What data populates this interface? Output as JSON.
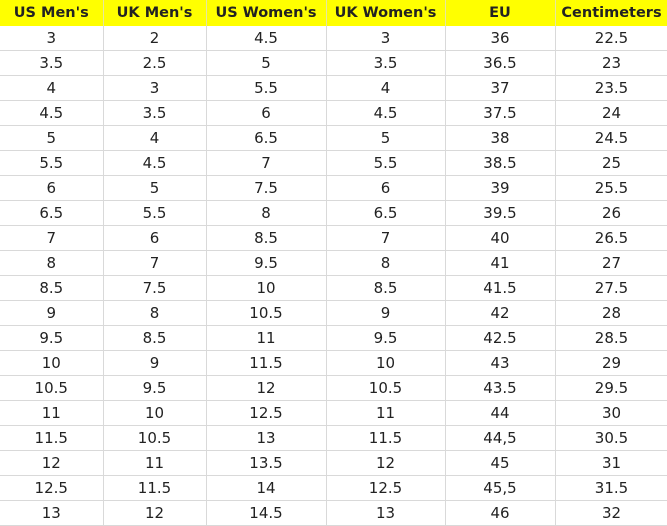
{
  "headers": [
    "US Men's",
    "UK Men's",
    "US Women's",
    "UK Women's",
    "EU",
    "Centimeters"
  ],
  "header_color": "#ffff00",
  "rows": [
    [
      "3",
      "2",
      "4.5",
      "3",
      "36",
      "22.5"
    ],
    [
      "3.5",
      "2.5",
      "5",
      "3.5",
      "36.5",
      "23"
    ],
    [
      "4",
      "3",
      "5.5",
      "4",
      "37",
      "23.5"
    ],
    [
      "4.5",
      "3.5",
      "6",
      "4.5",
      "37.5",
      "24"
    ],
    [
      "5",
      "4",
      "6.5",
      "5",
      "38",
      "24.5"
    ],
    [
      "5.5",
      "4.5",
      "7",
      "5.5",
      "38.5",
      "25"
    ],
    [
      "6",
      "5",
      "7.5",
      "6",
      "39",
      "25.5"
    ],
    [
      "6.5",
      "5.5",
      "8",
      "6.5",
      "39.5",
      "26"
    ],
    [
      "7",
      "6",
      "8.5",
      "7",
      "40",
      "26.5"
    ],
    [
      "8",
      "7",
      "9.5",
      "8",
      "41",
      "27"
    ],
    [
      "8.5",
      "7.5",
      "10",
      "8.5",
      "41.5",
      "27.5"
    ],
    [
      "9",
      "8",
      "10.5",
      "9",
      "42",
      "28"
    ],
    [
      "9.5",
      "8.5",
      "11",
      "9.5",
      "42.5",
      "28.5"
    ],
    [
      "10",
      "9",
      "11.5",
      "10",
      "43",
      "29"
    ],
    [
      "10.5",
      "9.5",
      "12",
      "10.5",
      "43.5",
      "29.5"
    ],
    [
      "11",
      "10",
      "12.5",
      "11",
      "44",
      "30"
    ],
    [
      "11.5",
      "10.5",
      "13",
      "11.5",
      "44,5",
      "30.5"
    ],
    [
      "12",
      "11",
      "13.5",
      "12",
      "45",
      "31"
    ],
    [
      "12.5",
      "11.5",
      "14",
      "12.5",
      "45,5",
      "31.5"
    ],
    [
      "13",
      "12",
      "14.5",
      "13",
      "46",
      "32"
    ]
  ]
}
